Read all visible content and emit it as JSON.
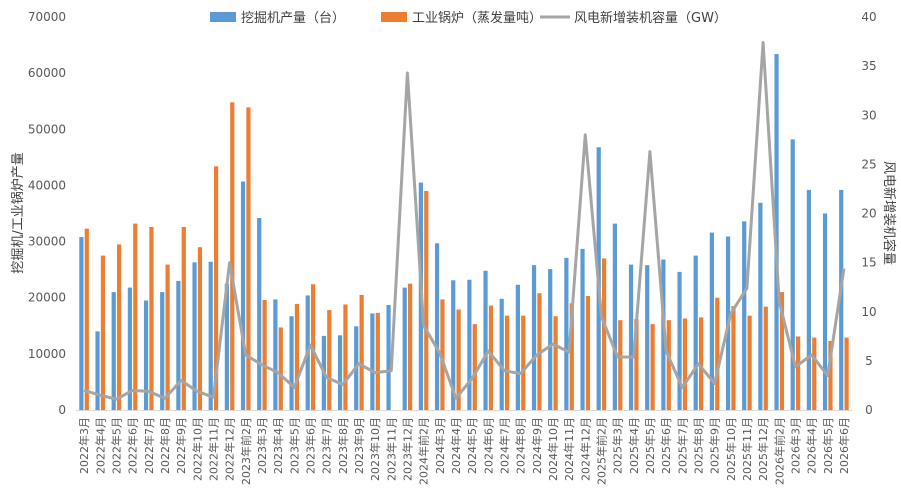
{
  "chart_data": {
    "type": "bar",
    "categories": [
      "2022年3月",
      "2022年4月",
      "2022年5月",
      "2022年6月",
      "2022年7月",
      "2022年8月",
      "2022年9月",
      "2022年10月",
      "2022年11月",
      "2022年12月",
      "2023年前2月",
      "2023年3月",
      "2023年4月",
      "2023年5月",
      "2023年6月",
      "2023年7月",
      "2023年8月",
      "2023年9月",
      "2023年10月",
      "2023年11月",
      "2023年12月",
      "2024年前2月",
      "2024年3月",
      "2024年4月",
      "2024年5月",
      "2024年6月",
      "2024年7月",
      "2024年8月",
      "2024年9月",
      "2024年10月",
      "2024年11月",
      "2024年12月",
      "2025年前2月",
      "2025年3月",
      "2025年4月",
      "2025年5月",
      "2025年6月",
      "2025年7月",
      "2025年8月",
      "2025年9月",
      "2025年10月",
      "2025年11月",
      "2025年12月",
      "2026年前2月",
      "2026年3月",
      "2026年4月",
      "2026年5月",
      "2026年6月"
    ],
    "series": [
      {
        "name": "挖掘机产量（台）",
        "type": "bar",
        "axis": "left",
        "color": "#5B9BD5",
        "values": [
          30800,
          14000,
          21000,
          21800,
          19500,
          21000,
          23000,
          26300,
          26400,
          22500,
          40700,
          34200,
          19700,
          16700,
          20400,
          13200,
          13300,
          14900,
          17200,
          18700,
          21800,
          40500,
          29700,
          23100,
          23200,
          24800,
          19800,
          22300,
          25800,
          25100,
          27100,
          28700,
          46800,
          33200,
          25900,
          25800,
          26800,
          24600,
          27500,
          31600,
          30900,
          33600,
          36900,
          63400,
          48200,
          39200,
          35000,
          39200
        ]
      },
      {
        "name": "工业锅炉（蒸发量吨）",
        "type": "bar",
        "axis": "left",
        "color": "#ED7D31",
        "values": [
          32300,
          27500,
          29500,
          33200,
          32600,
          25900,
          32600,
          29000,
          43400,
          54800,
          53900,
          19600,
          14700,
          18900,
          22400,
          17800,
          18800,
          20500,
          17300,
          0,
          22500,
          39000,
          19700,
          17900,
          15300,
          18600,
          16800,
          16800,
          20800,
          16700,
          19000,
          20300,
          27000,
          16000,
          16200,
          15300,
          16000,
          16300,
          16500,
          20000,
          18500,
          16800,
          18400,
          21000,
          13100,
          12900,
          12300,
          12900
        ]
      },
      {
        "name": "风电新增装机容量（GW）",
        "type": "line",
        "axis": "right",
        "color": "#A5A5A5",
        "values": [
          2.0,
          1.5,
          1.1,
          2.0,
          1.9,
          1.2,
          3.0,
          1.9,
          1.3,
          15.0,
          5.6,
          4.6,
          3.8,
          2.3,
          6.6,
          3.3,
          2.6,
          4.7,
          3.8,
          4.0,
          34.3,
          8.6,
          5.8,
          1.2,
          3.2,
          6.0,
          4.0,
          3.7,
          5.6,
          6.7,
          5.9,
          28.0,
          9.5,
          5.4,
          5.4,
          26.3,
          6.0,
          2.3,
          4.7,
          2.7,
          9.8,
          12.4,
          37.4,
          11.0,
          4.4,
          5.6,
          3.5,
          14.4
        ]
      }
    ],
    "y_left": {
      "label": "挖掘机/工业锅炉产量",
      "min": 0,
      "max": 70000,
      "ticks": [
        "0",
        "10000",
        "20000",
        "30000",
        "40000",
        "50000",
        "60000",
        "70000"
      ]
    },
    "y_right": {
      "label": "风电新增装机容量",
      "min": 0,
      "max": 40,
      "ticks": [
        "0",
        "5",
        "10",
        "15",
        "20",
        "25",
        "30",
        "35",
        "40"
      ]
    },
    "xlabel": "",
    "grid": false,
    "legend": "top-center"
  }
}
